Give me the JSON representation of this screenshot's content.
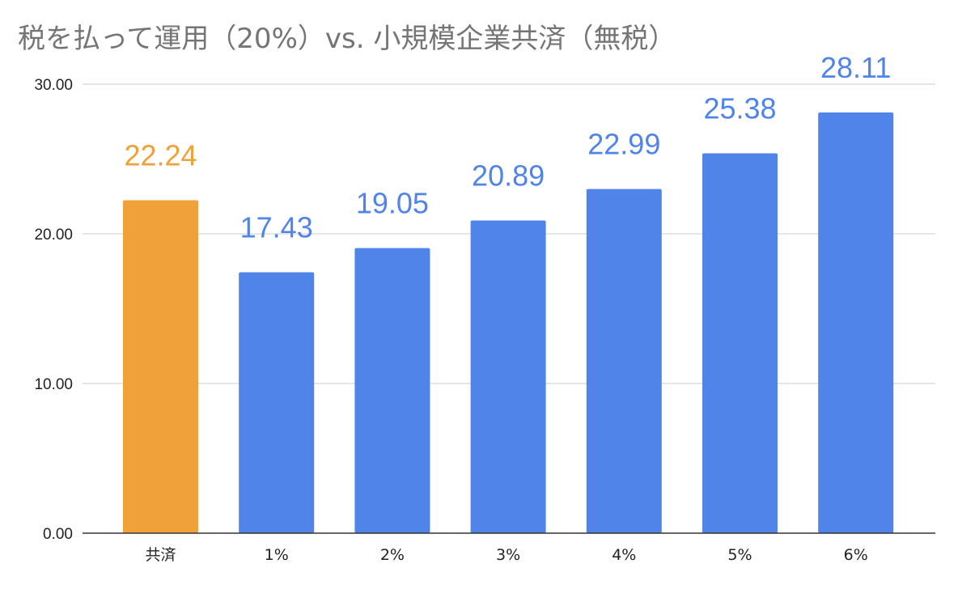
{
  "chart_data": {
    "type": "bar",
    "title": "税を払って運用（20%）vs. 小規模企業共済（無税）",
    "xlabel": "",
    "ylabel": "",
    "categories": [
      "共済",
      "1%",
      "2%",
      "3%",
      "4%",
      "5%",
      "6%"
    ],
    "values": [
      22.24,
      17.43,
      19.05,
      20.89,
      22.99,
      25.38,
      28.11
    ],
    "data_labels": [
      "22.24",
      "17.43",
      "19.05",
      "20.89",
      "22.99",
      "25.38",
      "28.11"
    ],
    "bar_colors": [
      "#f0a13a",
      "#5084e8",
      "#5084e8",
      "#5084e8",
      "#5084e8",
      "#5084e8",
      "#5084e8"
    ],
    "label_colors": [
      "#f0a13a",
      "#5084e8",
      "#5084e8",
      "#5084e8",
      "#5084e8",
      "#5084e8",
      "#5084e8"
    ],
    "ylim": [
      0,
      30
    ],
    "yticks": [
      0,
      10,
      20,
      30
    ],
    "ytick_labels": [
      "0.00",
      "10.00",
      "20.00",
      "30.00"
    ],
    "grid": true,
    "legend": "none"
  }
}
